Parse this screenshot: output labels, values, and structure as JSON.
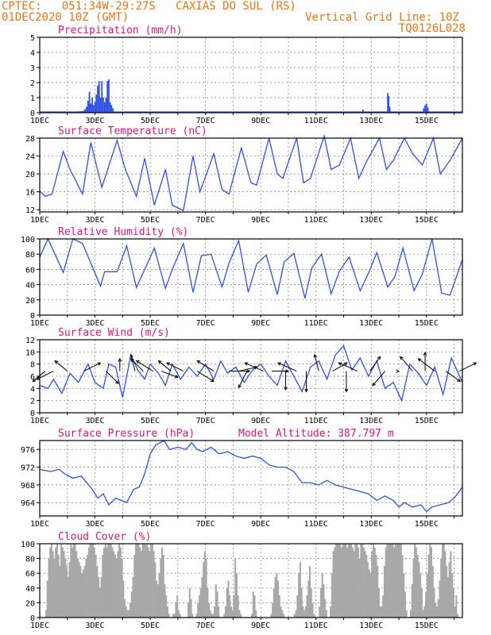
{
  "header": {
    "line1": "CPTEC:   051:34W-29:27S   CAXIAS DO SUL (RS)",
    "line2_left": "01DEC2020 10Z (GMT)",
    "line2_right": "Vertical Grid Line: 10Z",
    "line3_right": "TQ0126L028"
  },
  "colors": {
    "header": "#e8751a",
    "title": "#e0147a",
    "series": "#3050e6",
    "cloud": "#a8a8a8"
  },
  "chart_data": [
    {
      "type": "bar",
      "title": "Precipitation (mm/h)",
      "x_tick_labels": [
        "1DEC",
        "3DEC",
        "5DEC",
        "7DEC",
        "9DEC",
        "11DEC",
        "13DEC",
        "15DEC"
      ],
      "x_range_days": [
        1,
        16.3
      ],
      "ylim": [
        0,
        5
      ],
      "y_ticks": [
        0,
        1,
        2,
        3,
        4,
        5
      ],
      "grid": true,
      "x": [
        2.3,
        2.45,
        2.5,
        2.55,
        2.6,
        2.65,
        2.7,
        2.75,
        2.8,
        2.85,
        2.9,
        2.95,
        3.0,
        3.05,
        3.1,
        3.15,
        3.2,
        3.25,
        3.3,
        3.35,
        3.4,
        3.45,
        3.5,
        3.55,
        3.6,
        3.65,
        12.7,
        13.6,
        13.63,
        13.67,
        14.9,
        14.95,
        15.0,
        15.05
      ],
      "values": [
        0.05,
        0.1,
        0.1,
        0.1,
        0.15,
        0.25,
        0.4,
        0.8,
        1.4,
        0.6,
        1.0,
        0.5,
        0.7,
        1.2,
        1.8,
        2.1,
        1.0,
        2.1,
        1.0,
        0.7,
        1.0,
        2.1,
        2.2,
        0.7,
        0.5,
        0.3,
        0.2,
        1.3,
        1.1,
        0.4,
        0.3,
        0.5,
        0.6,
        0.35
      ]
    },
    {
      "type": "line",
      "title": "Surface Temperature (nC)",
      "x_tick_labels": [
        "1DEC",
        "3DEC",
        "5DEC",
        "7DEC",
        "9DEC",
        "11DEC",
        "13DEC",
        "15DEC"
      ],
      "x_range_days": [
        1,
        16.3
      ],
      "ylim": [
        11.5,
        28
      ],
      "y_ticks": [
        12,
        16,
        20,
        24,
        28
      ],
      "grid": true,
      "x": [
        1.0,
        1.2,
        1.45,
        1.85,
        2.1,
        2.55,
        2.85,
        3.25,
        3.8,
        4.1,
        4.5,
        4.8,
        5.15,
        5.55,
        5.8,
        6.2,
        6.55,
        6.8,
        7.3,
        7.6,
        7.85,
        8.3,
        8.65,
        8.85,
        9.3,
        9.6,
        9.8,
        10.3,
        10.55,
        10.8,
        11.3,
        11.55,
        11.85,
        12.25,
        12.55,
        12.85,
        13.3,
        13.55,
        13.8,
        14.2,
        14.5,
        14.85,
        15.25,
        15.5,
        15.85,
        16.3
      ],
      "values": [
        16.2,
        15.0,
        15.5,
        25.0,
        21.0,
        15.5,
        27.0,
        17.0,
        27.5,
        21.0,
        15.0,
        23.5,
        13.0,
        21.0,
        13.0,
        11.8,
        24.0,
        16.0,
        24.5,
        16.5,
        15.5,
        25.8,
        18.0,
        17.5,
        28.0,
        20.0,
        19.0,
        28.0,
        18.0,
        19.0,
        28.5,
        21.0,
        22.0,
        28.0,
        19.0,
        23.0,
        28.0,
        21.0,
        23.0,
        28.0,
        24.5,
        22.0,
        28.0,
        20.0,
        23.0,
        28.0
      ]
    },
    {
      "type": "line",
      "title": "Relative Humidity (%)",
      "x_tick_labels": [
        "1DEC",
        "3DEC",
        "5DEC",
        "7DEC",
        "9DEC",
        "11DEC",
        "13DEC",
        "15DEC"
      ],
      "x_range_days": [
        1,
        16.3
      ],
      "ylim": [
        0,
        100
      ],
      "y_ticks": [
        0,
        20,
        40,
        60,
        80,
        100
      ],
      "grid": true,
      "x": [
        1.0,
        1.3,
        1.85,
        2.2,
        2.55,
        3.2,
        3.35,
        3.8,
        4.15,
        4.5,
        5.15,
        5.55,
        5.8,
        6.2,
        6.55,
        6.85,
        7.2,
        7.6,
        7.85,
        8.2,
        8.55,
        8.85,
        9.2,
        9.6,
        9.85,
        10.2,
        10.6,
        10.85,
        11.2,
        11.55,
        11.85,
        12.2,
        12.6,
        12.9,
        13.2,
        13.6,
        13.85,
        14.15,
        14.55,
        14.85,
        15.2,
        15.55,
        15.85,
        16.3
      ],
      "values": [
        76,
        100,
        56,
        100,
        94,
        38,
        57,
        57,
        91,
        36,
        88,
        35,
        60,
        94,
        30,
        78,
        80,
        37,
        68,
        98,
        30,
        67,
        79,
        27,
        70,
        81,
        22,
        62,
        80,
        28,
        58,
        76,
        32,
        55,
        82,
        37,
        50,
        88,
        32,
        54,
        100,
        29,
        26,
        73
      ]
    },
    {
      "type": "line",
      "title": "Surface Wind (m/s)",
      "x_tick_labels": [
        "1DEC",
        "3DEC",
        "5DEC",
        "7DEC",
        "9DEC",
        "11DEC",
        "13DEC",
        "15DEC"
      ],
      "x_range_days": [
        1,
        16.3
      ],
      "ylim": [
        0,
        12
      ],
      "y_ticks": [
        0,
        2,
        4,
        6,
        8,
        10,
        12
      ],
      "grid": true,
      "x": [
        1.0,
        1.3,
        1.5,
        1.8,
        2.1,
        2.4,
        2.75,
        3.0,
        3.3,
        3.5,
        3.75,
        4.0,
        4.3,
        4.55,
        4.8,
        5.0,
        5.3,
        5.55,
        5.8,
        6.1,
        6.4,
        6.7,
        7.0,
        7.3,
        7.55,
        7.8,
        8.1,
        8.4,
        8.7,
        9.0,
        9.3,
        9.6,
        9.9,
        10.2,
        10.5,
        10.8,
        11.1,
        11.4,
        11.7,
        12.0,
        12.3,
        12.6,
        12.9,
        13.2,
        13.5,
        13.8,
        14.1,
        14.4,
        14.7,
        15.0,
        15.3,
        15.6,
        15.9,
        16.3
      ],
      "values": [
        4.5,
        4.0,
        5.5,
        3.2,
        6.5,
        5.0,
        8.0,
        5.0,
        4.0,
        8.0,
        7.5,
        2.5,
        9.5,
        7.0,
        5.5,
        8.0,
        6.5,
        4.5,
        8.0,
        5.5,
        7.5,
        6.0,
        8.0,
        5.5,
        8.5,
        6.5,
        7.5,
        5.0,
        7.0,
        8.0,
        6.0,
        4.5,
        8.5,
        6.0,
        3.5,
        7.5,
        8.5,
        5.5,
        9.5,
        11.0,
        7.0,
        9.0,
        6.0,
        8.5,
        4.0,
        5.0,
        2.0,
        8.0,
        6.5,
        4.5,
        7.5,
        3.0,
        9.0,
        5.0
      ],
      "arrow_x": [
        1.2,
        1.5,
        2.0,
        2.6,
        3.4,
        3.9,
        4.45,
        4.75,
        5.1,
        5.4,
        5.75,
        6.2,
        6.7,
        7.3,
        7.85,
        8.2,
        8.5,
        9.1,
        9.4,
        9.9,
        10.3,
        10.65,
        11.1,
        11.6,
        12.1,
        12.5,
        12.95,
        13.5,
        14.0,
        14.5,
        14.95,
        15.3,
        15.7,
        16.2
      ],
      "arrow_u": [
        -0.6,
        -0.8,
        -0.6,
        0.8,
        0.6,
        0.0,
        -0.2,
        -0.6,
        -0.8,
        0.8,
        -0.6,
        -0.8,
        0.8,
        -0.8,
        1.0,
        0.9,
        -0.4,
        -0.9,
        0.8,
        0.0,
        -0.9,
        0.0,
        -0.2,
        0.7,
        0.0,
        -0.9,
        0.5,
        -0.6,
        0.0,
        -0.6,
        0.0,
        -0.8,
        0.7,
        0.8
      ],
      "arrow_v": [
        -0.5,
        -0.4,
        0.5,
        0.4,
        -0.6,
        0.6,
        0.8,
        0.6,
        0.5,
        -0.3,
        0.5,
        0.4,
        -0.5,
        0.5,
        0.0,
        0.2,
        -0.8,
        0.4,
        0.0,
        -0.9,
        0.4,
        -1.0,
        0.8,
        0.4,
        -1.0,
        0.4,
        0.7,
        -0.7,
        0.0,
        0.7,
        0.9,
        0.6,
        -0.5,
        0.4
      ]
    },
    {
      "type": "line",
      "title": "Surface Pressure (hPa)",
      "annotation": "Model Altitude: 387.797 m",
      "x_tick_labels": [
        "1DEC",
        "3DEC",
        "5DEC",
        "7DEC",
        "9DEC",
        "11DEC",
        "13DEC",
        "15DEC"
      ],
      "x_range_days": [
        1,
        16.3
      ],
      "ylim": [
        961,
        978
      ],
      "y_ticks": [
        964,
        968,
        972,
        976
      ],
      "grid": true,
      "x": [
        1.0,
        1.4,
        1.7,
        1.9,
        2.2,
        2.5,
        2.7,
        2.9,
        3.1,
        3.3,
        3.5,
        3.75,
        3.95,
        4.15,
        4.4,
        4.6,
        4.8,
        5.0,
        5.2,
        5.5,
        5.7,
        6.0,
        6.3,
        6.5,
        6.7,
        6.9,
        7.2,
        7.5,
        7.8,
        8.1,
        8.4,
        8.7,
        9.0,
        9.3,
        9.6,
        9.9,
        10.2,
        10.5,
        10.8,
        11.1,
        11.4,
        11.7,
        12.0,
        12.3,
        12.6,
        12.9,
        13.2,
        13.5,
        13.8,
        14.0,
        14.2,
        14.5,
        14.8,
        15.0,
        15.2,
        15.5,
        15.8,
        16.0,
        16.3
      ],
      "values": [
        971.5,
        971.0,
        971.5,
        970.5,
        969.5,
        970.0,
        968.5,
        967.0,
        965.0,
        966.0,
        963.5,
        965.0,
        964.5,
        964.0,
        967.0,
        967.5,
        970.5,
        975.0,
        977.0,
        978.0,
        976.0,
        976.5,
        976.0,
        977.5,
        976.0,
        975.5,
        976.5,
        975.0,
        975.5,
        974.5,
        974.0,
        974.5,
        974.0,
        972.5,
        972.0,
        972.0,
        971.0,
        968.5,
        968.5,
        968.0,
        969.0,
        968.0,
        967.5,
        967.0,
        966.5,
        966.0,
        964.5,
        965.5,
        964.5,
        963.0,
        964.0,
        963.0,
        963.5,
        962.0,
        963.0,
        963.5,
        964.0,
        965.0,
        967.5
      ]
    },
    {
      "type": "bar",
      "title": "Cloud Cover (%)",
      "x_tick_labels": [
        "1DEC",
        "3DEC",
        "5DEC",
        "7DEC",
        "9DEC",
        "11DEC",
        "13DEC",
        "15DEC"
      ],
      "x_range_days": [
        1,
        16.3
      ],
      "ylim": [
        0,
        100
      ],
      "y_ticks": [
        0,
        20,
        40,
        60,
        80,
        100
      ],
      "grid": true,
      "x_start": 1.0,
      "x_step": 0.05,
      "values": [
        0,
        0,
        0,
        0,
        10,
        50,
        80,
        95,
        100,
        90,
        80,
        95,
        100,
        85,
        70,
        100,
        95,
        90,
        80,
        70,
        55,
        75,
        100,
        95,
        100,
        100,
        90,
        80,
        75,
        70,
        60,
        65,
        70,
        80,
        85,
        95,
        100,
        100,
        100,
        95,
        85,
        70,
        55,
        40,
        55,
        85,
        95,
        100,
        95,
        100,
        100,
        100,
        95,
        90,
        85,
        80,
        90,
        100,
        95,
        80,
        50,
        25,
        15,
        10,
        10,
        20,
        35,
        55,
        85,
        100,
        100,
        100,
        95,
        90,
        100,
        100,
        100,
        100,
        95,
        90,
        100,
        100,
        90,
        75,
        50,
        45,
        60,
        80,
        95,
        85,
        45,
        30,
        15,
        5,
        0,
        0,
        5,
        5,
        20,
        30,
        10,
        5,
        0,
        0,
        0,
        0,
        0,
        20,
        40,
        25,
        5,
        0,
        0,
        5,
        20,
        30,
        40,
        55,
        75,
        90,
        80,
        40,
        20,
        10,
        5,
        5,
        15,
        45,
        35,
        15,
        0,
        0,
        0,
        5,
        15,
        40,
        50,
        30,
        15,
        10,
        30,
        80,
        60,
        30,
        10,
        5,
        0,
        0,
        0,
        0,
        0,
        0,
        0,
        5,
        35,
        30,
        10,
        0,
        0,
        0,
        0,
        0,
        0,
        0,
        0,
        0,
        0,
        5,
        20,
        40,
        55,
        60,
        50,
        30,
        15,
        10,
        5,
        0,
        0,
        0,
        0,
        0,
        0,
        0,
        5,
        10,
        30,
        60,
        75,
        40,
        15,
        10,
        15,
        30,
        50,
        70,
        40,
        20,
        5,
        0,
        0,
        0,
        15,
        40,
        60,
        45,
        25,
        10,
        0,
        0,
        15,
        60,
        90,
        95,
        100,
        100,
        100,
        100,
        95,
        100,
        100,
        100,
        95,
        100,
        100,
        100,
        95,
        90,
        100,
        100,
        95,
        80,
        100,
        100,
        95,
        90,
        85,
        75,
        65,
        60,
        90,
        100,
        95,
        85,
        70,
        40,
        15,
        15,
        30,
        70,
        95,
        100,
        100,
        100,
        100,
        100,
        95,
        100,
        100,
        100,
        100,
        100,
        85,
        60,
        35,
        10,
        0,
        0,
        10,
        45,
        80,
        100,
        95,
        85,
        75,
        60,
        40,
        10,
        15,
        35,
        60,
        85,
        100,
        95,
        70,
        40,
        20,
        15,
        25,
        50,
        80,
        100,
        100,
        90,
        70,
        55,
        75,
        90,
        60,
        40,
        15,
        30,
        5,
        0,
        0,
        0,
        0,
        0,
        0,
        0,
        0,
        0,
        0,
        0,
        0
      ]
    }
  ]
}
